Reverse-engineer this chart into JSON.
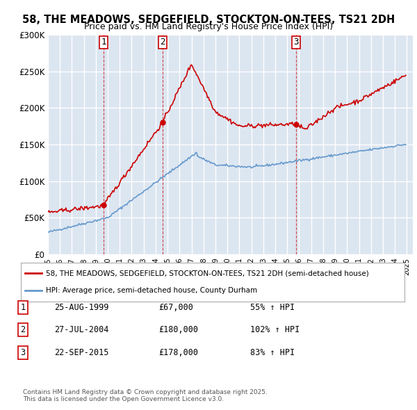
{
  "title": "58, THE MEADOWS, SEDGEFIELD, STOCKTON-ON-TEES, TS21 2DH",
  "subtitle": "Price paid vs. HM Land Registry's House Price Index (HPI)",
  "ylabel_ticks": [
    "£0",
    "£50K",
    "£100K",
    "£150K",
    "£200K",
    "£250K",
    "£300K"
  ],
  "ylim": [
    0,
    300000
  ],
  "xlim_start": 1995.0,
  "xlim_end": 2025.5,
  "sale_dates_num": [
    1999.646,
    2004.573,
    2015.728
  ],
  "sale_prices": [
    67000,
    180000,
    178000
  ],
  "sale_labels": [
    "1",
    "2",
    "3"
  ],
  "legend_red": "58, THE MEADOWS, SEDGEFIELD, STOCKTON-ON-TEES, TS21 2DH (semi-detached house)",
  "legend_blue": "HPI: Average price, semi-detached house, County Durham",
  "table_rows": [
    {
      "label": "1",
      "date": "25-AUG-1999",
      "price": "£67,000",
      "hpi": "55% ↑ HPI"
    },
    {
      "label": "2",
      "date": "27-JUL-2004",
      "price": "£180,000",
      "hpi": "102% ↑ HPI"
    },
    {
      "label": "3",
      "date": "22-SEP-2015",
      "price": "£178,000",
      "hpi": "83% ↑ HPI"
    }
  ],
  "footnote": "Contains HM Land Registry data © Crown copyright and database right 2025.\nThis data is licensed under the Open Government Licence v3.0.",
  "red_color": "#cc0000",
  "blue_color": "#6699cc",
  "bg_color": "#dce6f1",
  "grid_color": "#ffffff",
  "annotation_box_color": "#ffffff",
  "annotation_border_color": "#cc0000"
}
